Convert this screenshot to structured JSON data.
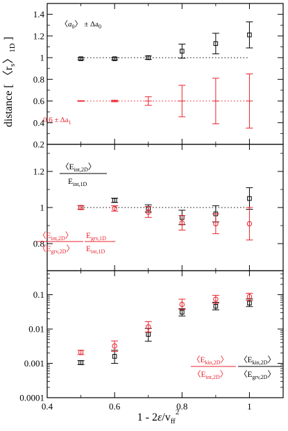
{
  "chart_data": {
    "type": "scatter",
    "x_label_parts": [
      "1 - 2",
      "ε",
      "/v",
      "ff",
      "2"
    ],
    "y_label_parts": [
      "distance [ ",
      "〈",
      "r",
      "s",
      "〉",
      "1D",
      " ]"
    ],
    "xlim": [
      0.4,
      1.1
    ],
    "x_ticks": [
      0.4,
      0.6,
      0.8,
      1.0
    ],
    "x_tick_labels": [
      "0.4",
      "0.6",
      "0.8",
      "1"
    ],
    "colors": {
      "black": "#000000",
      "red": "#e8212b"
    },
    "panels": [
      {
        "id": "top",
        "scale": "linear",
        "ylim": [
          0.2,
          1.5
        ],
        "y_ticks": [
          0.2,
          0.4,
          0.6,
          0.8,
          1.0,
          1.2,
          1.4
        ],
        "y_tick_labels": [
          "0.2",
          "0.4",
          "0.6",
          "0.8",
          "1",
          "1.2",
          "1.4"
        ],
        "reference_lines": [
          {
            "y": 1.0,
            "color": "#000000",
            "x_from": 0.5,
            "x_to": 1.0
          },
          {
            "y": 0.6,
            "color": "#e8212b",
            "x_from": 0.5,
            "x_to": 1.0
          }
        ],
        "series": [
          {
            "marker": "square",
            "color": "#000000",
            "points": [
              {
                "x": 0.5,
                "y": 0.99,
                "err": 0.01
              },
              {
                "x": 0.6,
                "y": 0.99,
                "err": 0.01
              },
              {
                "x": 0.7,
                "y": 1.0,
                "err": 0.015
              },
              {
                "x": 0.8,
                "y": 1.06,
                "err": 0.065
              },
              {
                "x": 0.9,
                "y": 1.13,
                "err": 0.095
              },
              {
                "x": 1.0,
                "y": 1.21,
                "err": 0.12
              }
            ]
          },
          {
            "marker": "none",
            "color": "#e8212b",
            "points": [
              {
                "x": 0.5,
                "y": 0.6,
                "err": 0.003
              },
              {
                "x": 0.6,
                "y": 0.6,
                "err": 0.008
              },
              {
                "x": 0.7,
                "y": 0.6,
                "err": 0.04
              },
              {
                "x": 0.8,
                "y": 0.6,
                "err": 0.145
              },
              {
                "x": 0.9,
                "y": 0.6,
                "err": 0.21
              },
              {
                "x": 1.0,
                "y": 0.6,
                "err": 0.25
              }
            ]
          }
        ],
        "annotations": [
          {
            "id": "a0",
            "color": "#000000",
            "parts": [
              "〈",
              "a",
              "0",
              "〉 ± Δa",
              "0"
            ]
          },
          {
            "id": "a1",
            "color": "#e8212b",
            "parts": [
              "0.6 ± Δa",
              "1"
            ]
          }
        ]
      },
      {
        "id": "middle",
        "scale": "linear",
        "ylim": [
          0.65,
          1.35
        ],
        "y_ticks": [
          0.8,
          1.0,
          1.2
        ],
        "y_tick_labels": [
          "0.8",
          "1",
          "1.2"
        ],
        "reference_lines": [
          {
            "y": 1.0,
            "color": "#000000",
            "x_from": 0.5,
            "x_to": 1.0
          }
        ],
        "series": [
          {
            "marker": "square",
            "color": "#000000",
            "points": [
              {
                "x": 0.5,
                "y": 1.0,
                "err": 0.01
              },
              {
                "x": 0.6,
                "y": 1.04,
                "err": 0.012
              },
              {
                "x": 0.7,
                "y": 0.995,
                "err": 0.02
              },
              {
                "x": 0.8,
                "y": 0.945,
                "err": 0.04
              },
              {
                "x": 0.9,
                "y": 0.965,
                "err": 0.045
              },
              {
                "x": 1.0,
                "y": 1.05,
                "err": 0.06
              }
            ]
          },
          {
            "marker": "circle",
            "color": "#e8212b",
            "points": [
              {
                "x": 0.5,
                "y": 1.0,
                "err": 0.01
              },
              {
                "x": 0.6,
                "y": 0.995,
                "err": 0.015
              },
              {
                "x": 0.7,
                "y": 0.975,
                "err": 0.03
              },
              {
                "x": 0.8,
                "y": 0.915,
                "err": 0.04
              },
              {
                "x": 0.9,
                "y": 0.91,
                "err": 0.055
              },
              {
                "x": 1.0,
                "y": 0.91,
                "err": 0.09
              }
            ]
          }
        ],
        "annotations": [
          {
            "id": "eint-ratio",
            "color": "#000000",
            "num": [
              "〈E",
              "int,2D",
              "〉"
            ],
            "den": [
              "E",
              "int,1D"
            ]
          },
          {
            "id": "eint-egrv",
            "color": "#e8212b",
            "num1": [
              "〈E",
              "int,2D",
              "〉"
            ],
            "den1": [
              "〈E",
              "grv,2D",
              "〉"
            ],
            "num2": [
              "E",
              "grv,1D"
            ],
            "den2": [
              "E",
              "int,1D"
            ]
          }
        ]
      },
      {
        "id": "bottom",
        "scale": "log",
        "ylim": [
          0.0001,
          0.5
        ],
        "y_ticks": [
          0.0001,
          0.001,
          0.01,
          0.1
        ],
        "y_tick_labels": [
          "0.0001",
          "0.001",
          "0.01",
          "0.1"
        ],
        "reference_lines": [],
        "series": [
          {
            "marker": "square",
            "color": "#000000",
            "points": [
              {
                "x": 0.5,
                "y": 0.00105,
                "lo": 0.00092,
                "hi": 0.0012
              },
              {
                "x": 0.6,
                "y": 0.0016,
                "lo": 0.001,
                "hi": 0.0024
              },
              {
                "x": 0.7,
                "y": 0.007,
                "lo": 0.0044,
                "hi": 0.0104
              },
              {
                "x": 0.8,
                "y": 0.031,
                "lo": 0.024,
                "hi": 0.039
              },
              {
                "x": 0.9,
                "y": 0.046,
                "lo": 0.036,
                "hi": 0.06
              },
              {
                "x": 1.0,
                "y": 0.057,
                "lo": 0.045,
                "hi": 0.075
              }
            ]
          },
          {
            "marker": "circle",
            "color": "#e8212b",
            "points": [
              {
                "x": 0.5,
                "y": 0.0021,
                "lo": 0.0018,
                "hi": 0.0024
              },
              {
                "x": 0.6,
                "y": 0.0032,
                "lo": 0.0022,
                "hi": 0.0045
              },
              {
                "x": 0.7,
                "y": 0.0115,
                "lo": 0.0082,
                "hi": 0.0165
              },
              {
                "x": 0.8,
                "y": 0.052,
                "lo": 0.037,
                "hi": 0.074
              },
              {
                "x": 0.9,
                "y": 0.074,
                "lo": 0.056,
                "hi": 0.096
              },
              {
                "x": 1.0,
                "y": 0.088,
                "lo": 0.068,
                "hi": 0.11
              }
            ]
          }
        ],
        "annotations": [
          {
            "id": "ekin-eint",
            "color": "#e8212b",
            "num": [
              "〈E",
              "kin,2D",
              "〉"
            ],
            "den": [
              "〈E",
              "int,2D",
              "〉"
            ]
          },
          {
            "id": "ekin-egrv",
            "color": "#000000",
            "num": [
              "〈E",
              "kin,2D",
              "〉"
            ],
            "den": [
              "〈E",
              "grv,2D",
              "〉"
            ]
          }
        ]
      }
    ]
  }
}
